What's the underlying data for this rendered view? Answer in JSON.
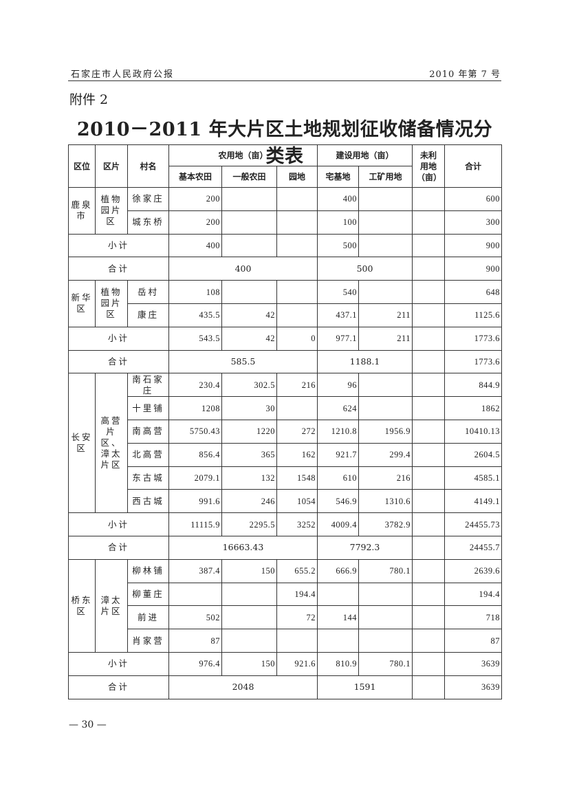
{
  "header": {
    "publication": "石家庄市人民政府公报",
    "issue": "2010 年第 7 号"
  },
  "attachment_label": "附件 2",
  "title": "2010－2011 年大片区土地规划征收储备情况分类表",
  "table": {
    "headers": {
      "district": "区位",
      "zone": "区片",
      "village": "村名",
      "farmland": "农用地（亩）",
      "construction": "建设用地（亩）",
      "unused": "未利用地（亩）",
      "total": "合计",
      "basic_farmland": "基本农田",
      "general_farmland": "一般农田",
      "garden": "园地",
      "homestead": "宅基地",
      "industrial_mining": "工矿用地"
    },
    "districts": [
      {
        "name": "鹿泉市",
        "zone": "植物园片区",
        "villages": [
          {
            "name": "徐家庄",
            "values": [
              "200",
              "",
              "",
              "400",
              "",
              "",
              "600"
            ]
          },
          {
            "name": "城东桥",
            "values": [
              "200",
              "",
              "",
              "100",
              "",
              "",
              "300"
            ]
          }
        ],
        "subtotal": {
          "label": "小计",
          "values": [
            "400",
            "",
            "",
            "500",
            "",
            "",
            "900"
          ]
        },
        "total": {
          "label": "合计",
          "farmland": "400",
          "construction": "500",
          "unused": "",
          "total": "900"
        }
      },
      {
        "name": "新华区",
        "zone": "植物园片区",
        "villages": [
          {
            "name": "岳村",
            "values": [
              "108",
              "",
              "",
              "540",
              "",
              "",
              "648"
            ]
          },
          {
            "name": "康庄",
            "values": [
              "435.5",
              "42",
              "",
              "437.1",
              "211",
              "",
              "1125.6"
            ]
          }
        ],
        "subtotal": {
          "label": "小计",
          "values": [
            "543.5",
            "42",
            "0",
            "977.1",
            "211",
            "",
            "1773.6"
          ]
        },
        "total": {
          "label": "合计",
          "farmland": "585.5",
          "construction": "1188.1",
          "unused": "",
          "total": "1773.6"
        }
      },
      {
        "name": "长安区",
        "zone": "高营片区、漳太片区",
        "villages": [
          {
            "name": "南石家庄",
            "values": [
              "230.4",
              "302.5",
              "216",
              "96",
              "",
              "",
              "844.9"
            ]
          },
          {
            "name": "十里铺",
            "values": [
              "1208",
              "30",
              "",
              "624",
              "",
              "",
              "1862"
            ]
          },
          {
            "name": "南高营",
            "values": [
              "5750.43",
              "1220",
              "272",
              "1210.8",
              "1956.9",
              "",
              "10410.13"
            ]
          },
          {
            "name": "北高营",
            "values": [
              "856.4",
              "365",
              "162",
              "921.7",
              "299.4",
              "",
              "2604.5"
            ]
          },
          {
            "name": "东古城",
            "values": [
              "2079.1",
              "132",
              "1548",
              "610",
              "216",
              "",
              "4585.1"
            ]
          },
          {
            "name": "西古城",
            "values": [
              "991.6",
              "246",
              "1054",
              "546.9",
              "1310.6",
              "",
              "4149.1"
            ]
          }
        ],
        "subtotal": {
          "label": "小计",
          "values": [
            "11115.9",
            "2295.5",
            "3252",
            "4009.4",
            "3782.9",
            "",
            "24455.73"
          ]
        },
        "total": {
          "label": "合计",
          "farmland": "16663.43",
          "construction": "7792.3",
          "unused": "",
          "total": "24455.7"
        }
      },
      {
        "name": "桥东区",
        "zone": "漳太片区",
        "villages": [
          {
            "name": "柳林铺",
            "values": [
              "387.4",
              "150",
              "655.2",
              "666.9",
              "780.1",
              "",
              "2639.6"
            ]
          },
          {
            "name": "柳董庄",
            "values": [
              "",
              "",
              "194.4",
              "",
              "",
              "",
              "194.4"
            ]
          },
          {
            "name": "前进",
            "values": [
              "502",
              "",
              "72",
              "144",
              "",
              "",
              "718"
            ]
          },
          {
            "name": "肖家营",
            "values": [
              "87",
              "",
              "",
              "",
              "",
              "",
              "87"
            ]
          }
        ],
        "subtotal": {
          "label": "小计",
          "values": [
            "976.4",
            "150",
            "921.6",
            "810.9",
            "780.1",
            "",
            "3639"
          ]
        },
        "total": {
          "label": "合计",
          "farmland": "2048",
          "construction": "1591",
          "unused": "",
          "total": "3639"
        }
      }
    ]
  },
  "page_number": "— 30 —"
}
